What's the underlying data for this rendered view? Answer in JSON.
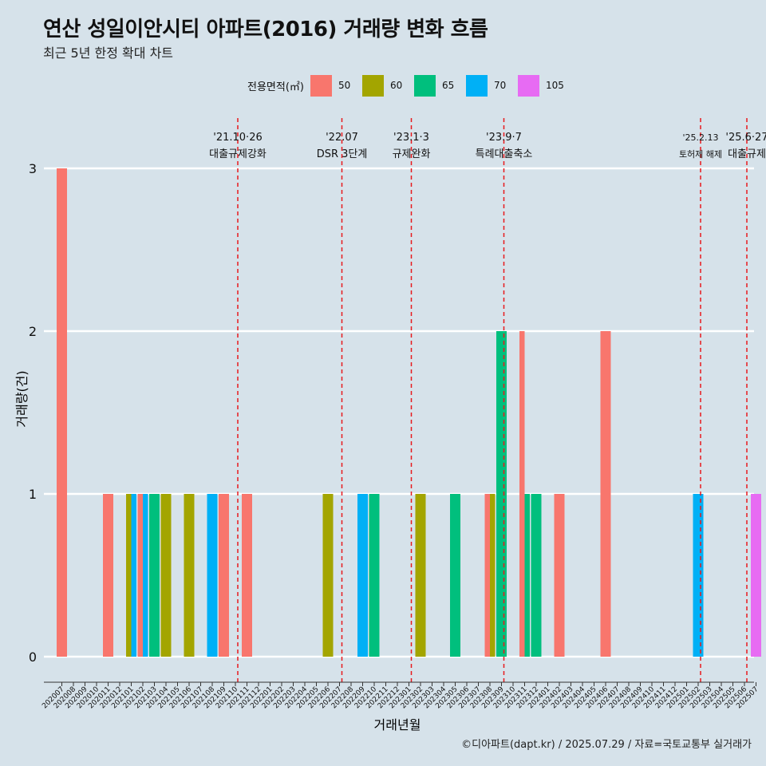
{
  "header": {
    "title": "연산 성일이안시티 아파트(2016) 거래량 변화 흐름",
    "subtitle": "최근 5년 한정 확대 차트"
  },
  "legend": {
    "title": "전용면적(㎡)",
    "items": [
      {
        "label": "50",
        "color": "#f8766d"
      },
      {
        "label": "60",
        "color": "#a3a500"
      },
      {
        "label": "65",
        "color": "#00bf7d"
      },
      {
        "label": "70",
        "color": "#00b0f6"
      },
      {
        "label": "105",
        "color": "#e76bf3"
      }
    ]
  },
  "caption": "©디아파트(dapt.kr) / 2025.07.29 / 자료=국토교통부 실거래가",
  "chart_data": {
    "type": "bar",
    "xlabel": "거래년월",
    "ylabel": "거래량(건)",
    "ylim": [
      0,
      3
    ],
    "yticks": [
      0,
      1,
      2,
      3
    ],
    "grid": true,
    "legend_position": "top",
    "categories": [
      "202007",
      "202008",
      "202009",
      "202010",
      "202011",
      "202012",
      "202101",
      "202102",
      "202103",
      "202104",
      "202105",
      "202106",
      "202107",
      "202108",
      "202109",
      "202110",
      "202111",
      "202112",
      "202201",
      "202202",
      "202203",
      "202204",
      "202205",
      "202206",
      "202207",
      "202208",
      "202209",
      "202210",
      "202211",
      "202212",
      "202301",
      "202302",
      "202303",
      "202304",
      "202305",
      "202306",
      "202307",
      "202308",
      "202309",
      "202310",
      "202311",
      "202312",
      "202401",
      "202402",
      "202403",
      "202404",
      "202405",
      "202406",
      "202407",
      "202408",
      "202409",
      "202410",
      "202411",
      "202412",
      "202501",
      "202502",
      "202503",
      "202504",
      "202505",
      "202506",
      "202507"
    ],
    "bars": [
      {
        "month": "202007",
        "area": "50",
        "value": 3
      },
      {
        "month": "202011",
        "area": "50",
        "value": 1
      },
      {
        "month": "202101",
        "area": "60",
        "value": 1
      },
      {
        "month": "202101",
        "area": "70",
        "value": 1
      },
      {
        "month": "202102",
        "area": "50",
        "value": 1
      },
      {
        "month": "202102",
        "area": "70",
        "value": 1
      },
      {
        "month": "202103",
        "area": "65",
        "value": 1
      },
      {
        "month": "202104",
        "area": "60",
        "value": 1
      },
      {
        "month": "202106",
        "area": "60",
        "value": 1
      },
      {
        "month": "202108",
        "area": "70",
        "value": 1
      },
      {
        "month": "202109",
        "area": "50",
        "value": 1
      },
      {
        "month": "202111",
        "area": "50",
        "value": 1
      },
      {
        "month": "202206",
        "area": "60",
        "value": 1
      },
      {
        "month": "202209",
        "area": "70",
        "value": 1
      },
      {
        "month": "202210",
        "area": "65",
        "value": 1
      },
      {
        "month": "202302",
        "area": "60",
        "value": 1
      },
      {
        "month": "202305",
        "area": "65",
        "value": 1
      },
      {
        "month": "202308",
        "area": "50",
        "value": 1
      },
      {
        "month": "202308",
        "area": "60",
        "value": 1
      },
      {
        "month": "202309",
        "area": "65",
        "value": 2
      },
      {
        "month": "202311",
        "area": "50",
        "value": 2
      },
      {
        "month": "202311",
        "area": "65",
        "value": 1
      },
      {
        "month": "202312",
        "area": "65",
        "value": 1
      },
      {
        "month": "202402",
        "area": "50",
        "value": 1
      },
      {
        "month": "202406",
        "area": "50",
        "value": 2
      },
      {
        "month": "202502",
        "area": "70",
        "value": 1
      },
      {
        "month": "202507",
        "area": "105",
        "value": 1
      }
    ],
    "events": [
      {
        "month": "202110",
        "date": "'21.10·26",
        "label": "대출규제강화"
      },
      {
        "month": "202207",
        "date": "'22.07",
        "label": "DSR 3단계"
      },
      {
        "month": "202301",
        "date": "'23.1·3",
        "label": "규제완화"
      },
      {
        "month": "202309",
        "date": "'23.9·7",
        "label": "특례대출축소"
      },
      {
        "month": "202502",
        "date": "'25.2.13",
        "label": "토허제 해제"
      },
      {
        "month": "202506",
        "date": "'25.6·27",
        "label": "대출규제"
      }
    ]
  }
}
